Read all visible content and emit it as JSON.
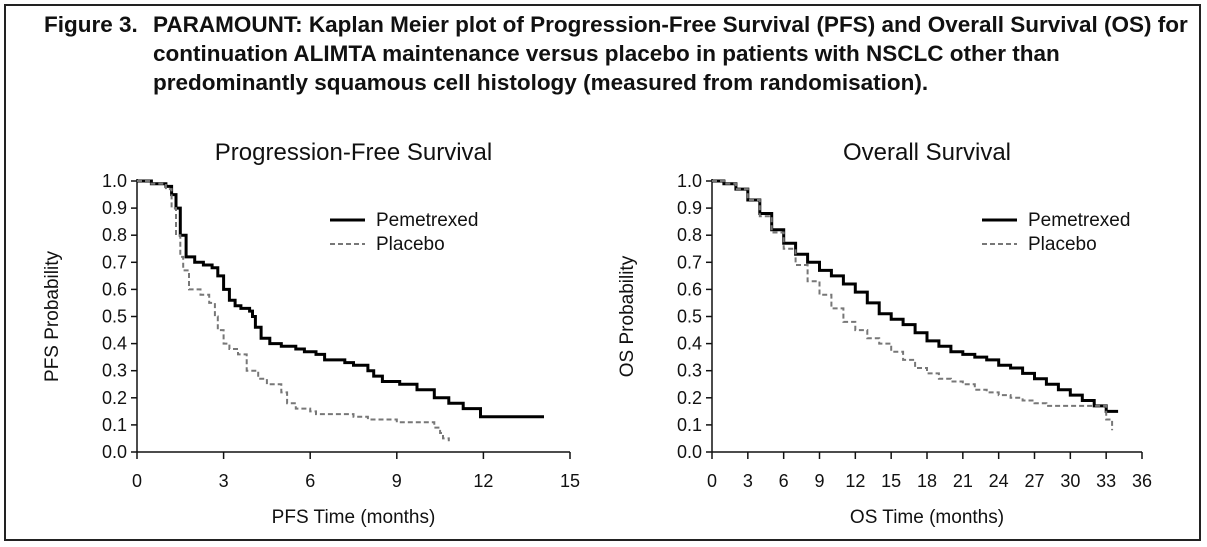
{
  "figure": {
    "label": "Figure 3.",
    "caption": "PARAMOUNT: Kaplan Meier plot of Progression-Free Survival (PFS) and Overall Survival (OS) for continuation ALIMTA maintenance versus placebo in patients with NSCLC other than predominantly squamous cell histology (measured from randomisation)."
  },
  "chart_data": [
    {
      "type": "line",
      "subtype": "kaplan-meier-step",
      "title": "Progression-Free Survival",
      "xlabel": "PFS Time (months)",
      "ylabel": "PFS Probability",
      "xlim": [
        0,
        15
      ],
      "ylim": [
        0,
        1
      ],
      "xticks": [
        0,
        3,
        6,
        9,
        12,
        15
      ],
      "yticks": [
        0.0,
        0.1,
        0.2,
        0.3,
        0.4,
        0.5,
        0.6,
        0.7,
        0.8,
        0.9,
        1.0
      ],
      "grid": false,
      "legend_position": "top-right",
      "series": [
        {
          "name": "Pemetrexed",
          "color": "#000000",
          "style": "solid",
          "x": [
            0,
            0.5,
            1.0,
            1.2,
            1.35,
            1.5,
            1.7,
            2.0,
            2.3,
            2.6,
            2.8,
            3.0,
            3.2,
            3.4,
            3.6,
            3.9,
            4.0,
            4.1,
            4.3,
            4.6,
            5.0,
            5.5,
            5.8,
            6.2,
            6.5,
            7.2,
            7.5,
            8.0,
            8.2,
            8.5,
            9.1,
            9.7,
            10.3,
            10.8,
            11.3,
            11.9,
            14.1
          ],
          "y": [
            1.0,
            0.99,
            0.98,
            0.95,
            0.9,
            0.8,
            0.72,
            0.7,
            0.69,
            0.68,
            0.65,
            0.6,
            0.56,
            0.54,
            0.53,
            0.52,
            0.5,
            0.46,
            0.42,
            0.4,
            0.39,
            0.38,
            0.37,
            0.36,
            0.34,
            0.33,
            0.32,
            0.3,
            0.28,
            0.26,
            0.25,
            0.23,
            0.2,
            0.18,
            0.16,
            0.13,
            0.13
          ]
        },
        {
          "name": "Placebo",
          "color": "#777777",
          "style": "dashed",
          "x": [
            0,
            0.5,
            1.0,
            1.2,
            1.35,
            1.5,
            1.6,
            1.8,
            2.2,
            2.5,
            2.7,
            2.8,
            3.0,
            3.2,
            3.5,
            3.8,
            4.2,
            4.5,
            5.0,
            5.2,
            5.5,
            6.0,
            6.2,
            7.0,
            7.5,
            8.0,
            9.0,
            10.0,
            10.3,
            10.5,
            10.6,
            10.8
          ],
          "y": [
            1.0,
            0.99,
            0.97,
            0.9,
            0.8,
            0.72,
            0.67,
            0.6,
            0.58,
            0.55,
            0.5,
            0.45,
            0.4,
            0.38,
            0.36,
            0.3,
            0.27,
            0.25,
            0.22,
            0.18,
            0.16,
            0.15,
            0.14,
            0.14,
            0.13,
            0.12,
            0.11,
            0.11,
            0.09,
            0.07,
            0.05,
            0.04
          ]
        }
      ]
    },
    {
      "type": "line",
      "subtype": "kaplan-meier-step",
      "title": "Overall Survival",
      "xlabel": "OS Time (months)",
      "ylabel": "OS Probability",
      "xlim": [
        0,
        36
      ],
      "ylim": [
        0,
        1
      ],
      "xticks": [
        0,
        3,
        6,
        9,
        12,
        15,
        18,
        21,
        24,
        27,
        30,
        33,
        36
      ],
      "yticks": [
        0.0,
        0.1,
        0.2,
        0.3,
        0.4,
        0.5,
        0.6,
        0.7,
        0.8,
        0.9,
        1.0
      ],
      "grid": false,
      "legend_position": "top-right",
      "series": [
        {
          "name": "Pemetrexed",
          "color": "#000000",
          "style": "solid",
          "x": [
            0,
            1,
            2,
            3,
            4,
            5,
            6,
            7,
            8,
            9,
            10,
            11,
            12,
            13,
            14,
            15,
            16,
            17,
            18,
            19,
            20,
            21,
            22,
            23,
            24,
            25,
            26,
            27,
            28,
            29,
            30,
            31,
            32,
            33,
            34
          ],
          "y": [
            1.0,
            0.99,
            0.97,
            0.93,
            0.88,
            0.82,
            0.77,
            0.73,
            0.7,
            0.67,
            0.65,
            0.62,
            0.59,
            0.55,
            0.51,
            0.49,
            0.47,
            0.44,
            0.41,
            0.39,
            0.37,
            0.36,
            0.35,
            0.34,
            0.32,
            0.31,
            0.29,
            0.27,
            0.25,
            0.23,
            0.21,
            0.19,
            0.17,
            0.15,
            0.15
          ]
        },
        {
          "name": "Placebo",
          "color": "#777777",
          "style": "dashed",
          "x": [
            0,
            1,
            2,
            3,
            4,
            5,
            6,
            7,
            8,
            9,
            10,
            11,
            12,
            13,
            14,
            15,
            16,
            17,
            18,
            19,
            20,
            21,
            22,
            23,
            24,
            25,
            26,
            27,
            28,
            29,
            30,
            31,
            32,
            33,
            33.5
          ],
          "y": [
            1.0,
            0.99,
            0.97,
            0.93,
            0.87,
            0.81,
            0.75,
            0.69,
            0.63,
            0.58,
            0.53,
            0.48,
            0.45,
            0.42,
            0.4,
            0.37,
            0.34,
            0.31,
            0.29,
            0.27,
            0.26,
            0.25,
            0.23,
            0.22,
            0.21,
            0.2,
            0.19,
            0.18,
            0.17,
            0.17,
            0.17,
            0.17,
            0.17,
            0.12,
            0.08
          ]
        }
      ]
    }
  ]
}
